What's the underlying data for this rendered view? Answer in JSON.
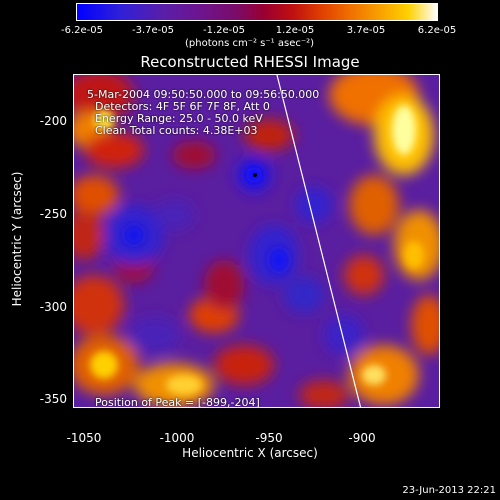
{
  "colorbar": {
    "ticks": [
      "-6.2e-05",
      "-3.7e-05",
      "-1.2e-05",
      "1.2e-05",
      "3.7e-05",
      "6.2e-05"
    ],
    "unit_label": "(photons cm⁻² s⁻¹ asec⁻²)"
  },
  "plot": {
    "title": "Reconstructed RHESSI Image",
    "annotations": {
      "time": "5-Mar-2004 09:50:50.000 to 09:56:50.000",
      "detectors": "Detectors: 4F 5F 6F 7F 8F, Att 0",
      "energy": "Energy Range: 25.0 - 50.0 keV",
      "clean": "Clean     Total counts: 4.38E+03",
      "peak": "Position of Peak = [-899,-204]"
    },
    "yticks": [
      "-200",
      "-250",
      "-300",
      "-350"
    ],
    "xticks": [
      "-1050",
      "-1000",
      "-950",
      "-900"
    ],
    "xlabel": "Heliocentric X (arcsec)",
    "ylabel": "Heliocentric Y (arcsec)"
  },
  "footer": {
    "timestamp": "23-Jun-2013 22:21"
  }
}
